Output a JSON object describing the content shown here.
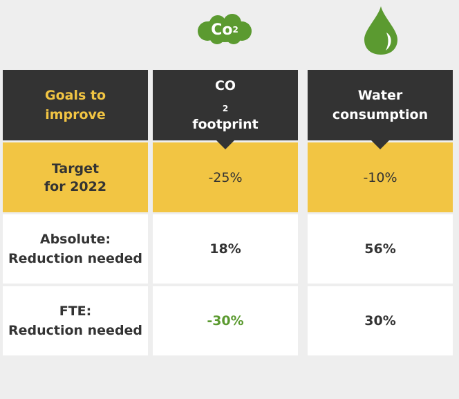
{
  "colors": {
    "dark": "#333333",
    "yellow": "#f2c543",
    "green": "#5b9a30",
    "white": "#ffffff",
    "background": "#eeeeee"
  },
  "icons": {
    "co2": "co2-cloud-icon",
    "water": "water-drop-icon"
  },
  "co2_icon": {
    "main": "Co",
    "sub": "2"
  },
  "header": {
    "label_line1": "Goals to",
    "label_line2": "improve",
    "co2_line1_main": "CO",
    "co2_line1_sub": "2",
    "co2_line2": "footprint",
    "water_line1": "Water",
    "water_line2": "consumption"
  },
  "rows": [
    {
      "label_line1": "Target",
      "label_line2": "for 2022",
      "co2": "-25%",
      "water": "-10%"
    },
    {
      "label_line1": "Absolute:",
      "label_line2": "Reduction needed",
      "co2": "18%",
      "water": "56%"
    },
    {
      "label_line1": "FTE:",
      "label_line2": "Reduction needed",
      "co2": "-30%",
      "water": "30%"
    }
  ]
}
